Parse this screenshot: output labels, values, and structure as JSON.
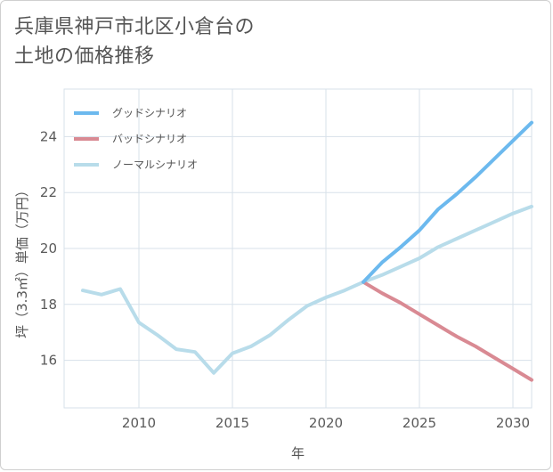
{
  "title_lines": [
    "兵庫県神戸市北区小倉台の",
    "土地の価格推移"
  ],
  "chart_data": {
    "type": "line",
    "title": "兵庫県神戸市北区小倉台の土地の価格推移",
    "xlabel": "年",
    "ylabel": "坪（3.3㎡）単価（万円）",
    "xlim": [
      2006,
      2031
    ],
    "ylim": [
      14.3,
      25.7
    ],
    "x_ticks": [
      2010,
      2015,
      2020,
      2025,
      2030
    ],
    "y_ticks": [
      16,
      18,
      20,
      22,
      24
    ],
    "grid": true,
    "legend_position": "top-left",
    "series": [
      {
        "name": "グッドシナリオ",
        "color": "#6cb9ee",
        "x": [
          2022,
          2023,
          2024,
          2025,
          2026,
          2027,
          2028,
          2029,
          2030,
          2031
        ],
        "y": [
          18.8,
          19.5,
          20.05,
          20.65,
          21.4,
          21.95,
          22.55,
          23.2,
          23.85,
          24.5
        ]
      },
      {
        "name": "バッドシナリオ",
        "color": "#d98a93",
        "x": [
          2022,
          2023,
          2024,
          2025,
          2026,
          2027,
          2028,
          2029,
          2030,
          2031
        ],
        "y": [
          18.8,
          18.4,
          18.05,
          17.65,
          17.25,
          16.85,
          16.5,
          16.1,
          15.7,
          15.3
        ]
      },
      {
        "name": "ノーマルシナリオ",
        "color": "#b8dcea",
        "x": [
          2007,
          2008,
          2009,
          2010,
          2011,
          2012,
          2013,
          2014,
          2015,
          2016,
          2017,
          2018,
          2019,
          2020,
          2021,
          2022,
          2023,
          2024,
          2025,
          2026,
          2027,
          2028,
          2029,
          2030,
          2031
        ],
        "y": [
          18.5,
          18.35,
          18.55,
          17.35,
          16.9,
          16.4,
          16.3,
          15.55,
          16.25,
          16.5,
          16.9,
          17.45,
          17.95,
          18.25,
          18.5,
          18.8,
          19.05,
          19.35,
          19.65,
          20.05,
          20.35,
          20.65,
          20.95,
          21.25,
          21.5
        ]
      }
    ]
  }
}
